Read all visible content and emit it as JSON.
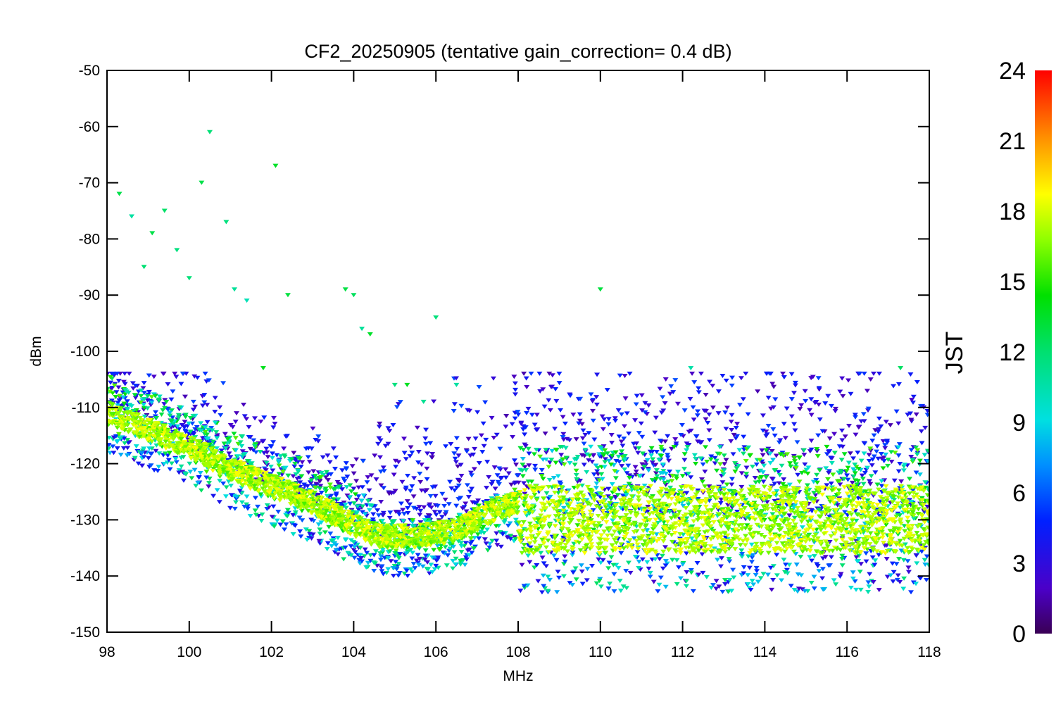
{
  "chart_data": {
    "type": "scatter",
    "title": "CF2_20250905 (tentative gain_correction=  0.4 dB)",
    "xlabel": "MHz",
    "ylabel": "dBm",
    "xlim": [
      98,
      118
    ],
    "ylim": [
      -150,
      -50
    ],
    "xticks": [
      "98",
      "100",
      "102",
      "104",
      "106",
      "108",
      "110",
      "112",
      "114",
      "116",
      "118"
    ],
    "yticks": [
      "-50",
      "-60",
      "-70",
      "-80",
      "-90",
      "-100",
      "-110",
      "-120",
      "-130",
      "-140",
      "-150"
    ],
    "colorbar": {
      "title": "JST",
      "range": [
        0,
        24
      ],
      "ticks": [
        "0",
        "3",
        "6",
        "9",
        "12",
        "15",
        "18",
        "21",
        "24"
      ],
      "colormap": "rainbow"
    },
    "noise_floor": [
      {
        "x": 98.0,
        "y": -111
      },
      {
        "x": 99.0,
        "y": -114
      },
      {
        "x": 100.0,
        "y": -117
      },
      {
        "x": 101.0,
        "y": -121
      },
      {
        "x": 102.0,
        "y": -124
      },
      {
        "x": 103.0,
        "y": -127
      },
      {
        "x": 104.0,
        "y": -131
      },
      {
        "x": 104.6,
        "y": -133
      },
      {
        "x": 105.5,
        "y": -133
      },
      {
        "x": 106.5,
        "y": -132
      },
      {
        "x": 107.5,
        "y": -128
      },
      {
        "x": 108.0,
        "y": -127
      },
      {
        "x": 108.01,
        "y": -130
      },
      {
        "x": 114.8,
        "y": -130
      },
      {
        "x": 118.0,
        "y": -130
      }
    ],
    "peaks": [
      {
        "freq": 98.3,
        "dbm": -72
      },
      {
        "freq": 98.6,
        "dbm": -76
      },
      {
        "freq": 98.9,
        "dbm": -85
      },
      {
        "freq": 99.1,
        "dbm": -79
      },
      {
        "freq": 99.4,
        "dbm": -75
      },
      {
        "freq": 99.7,
        "dbm": -82
      },
      {
        "freq": 100.0,
        "dbm": -87
      },
      {
        "freq": 100.3,
        "dbm": -70
      },
      {
        "freq": 100.5,
        "dbm": -61
      },
      {
        "freq": 100.9,
        "dbm": -77
      },
      {
        "freq": 101.1,
        "dbm": -89
      },
      {
        "freq": 101.4,
        "dbm": -91
      },
      {
        "freq": 101.8,
        "dbm": -103
      },
      {
        "freq": 102.1,
        "dbm": -67
      },
      {
        "freq": 102.4,
        "dbm": -90
      },
      {
        "freq": 103.8,
        "dbm": -89
      },
      {
        "freq": 104.0,
        "dbm": -90
      },
      {
        "freq": 104.2,
        "dbm": -96
      },
      {
        "freq": 104.4,
        "dbm": -97
      },
      {
        "freq": 105.0,
        "dbm": -106
      },
      {
        "freq": 105.3,
        "dbm": -106
      },
      {
        "freq": 105.7,
        "dbm": -109
      },
      {
        "freq": 106.0,
        "dbm": -94
      },
      {
        "freq": 106.5,
        "dbm": -106
      },
      {
        "freq": 110.0,
        "dbm": -89
      },
      {
        "freq": 112.2,
        "dbm": -103
      },
      {
        "freq": 117.3,
        "dbm": -103
      }
    ]
  }
}
